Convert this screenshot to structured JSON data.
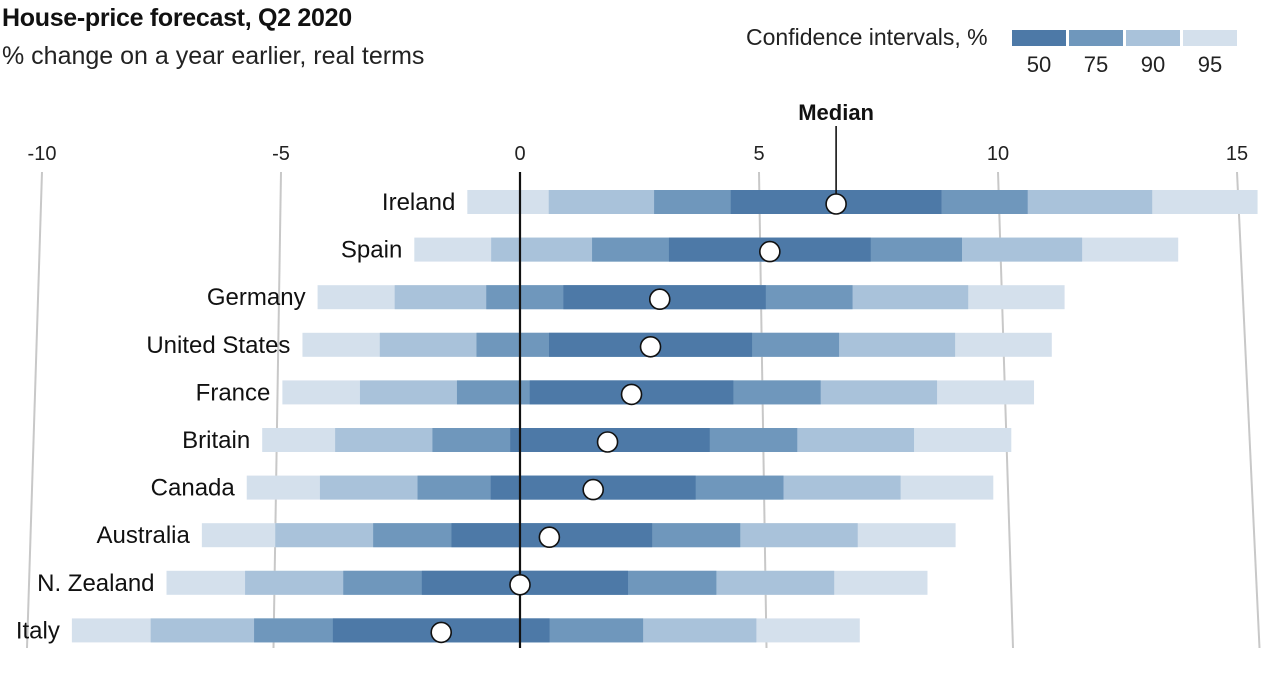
{
  "chart_data": {
    "type": "bar",
    "title": "House-price forecast, Q2 2020",
    "subtitle": "% change on a year earlier, real terms",
    "legend_title": "Confidence intervals, %",
    "legend_levels": [
      "50",
      "75",
      "90",
      "95"
    ],
    "median_label": "Median",
    "x_ticks": [
      "-10",
      "-5",
      "0",
      "5",
      "10",
      "15"
    ],
    "xlim": [
      -10,
      15
    ],
    "colors": {
      "50": "#4d79a7",
      "75": "#6f97bc",
      "90": "#a9c2da",
      "95": "#d4e0ec"
    },
    "countries": [
      {
        "name": "Ireland",
        "median": 6.6,
        "b95": [
          -1.1,
          15.4
        ],
        "b90": [
          0.6,
          13.2
        ],
        "b75": [
          2.8,
          10.6
        ],
        "b50": [
          4.4,
          8.8
        ]
      },
      {
        "name": "Spain",
        "median": 5.2,
        "b95": [
          -2.2,
          13.7
        ],
        "b90": [
          -0.6,
          11.7
        ],
        "b75": [
          1.5,
          9.2
        ],
        "b50": [
          3.1,
          7.3
        ]
      },
      {
        "name": "Germany",
        "median": 2.9,
        "b95": [
          -4.2,
          11.3
        ],
        "b90": [
          -2.6,
          9.3
        ],
        "b75": [
          -0.7,
          6.9
        ],
        "b50": [
          0.9,
          5.1
        ]
      },
      {
        "name": "United States",
        "median": 2.7,
        "b95": [
          -4.5,
          11.0
        ],
        "b90": [
          -2.9,
          9.0
        ],
        "b75": [
          -0.9,
          6.6
        ],
        "b50": [
          0.6,
          4.8
        ]
      },
      {
        "name": "France",
        "median": 2.3,
        "b95": [
          -4.9,
          10.6
        ],
        "b90": [
          -3.3,
          8.6
        ],
        "b75": [
          -1.3,
          6.2
        ],
        "b50": [
          0.2,
          4.4
        ]
      },
      {
        "name": "Britain",
        "median": 1.8,
        "b95": [
          -5.3,
          10.1
        ],
        "b90": [
          -3.8,
          8.1
        ],
        "b75": [
          -1.8,
          5.7
        ],
        "b50": [
          -0.2,
          3.9
        ]
      },
      {
        "name": "Canada",
        "median": 1.5,
        "b95": [
          -5.6,
          9.7
        ],
        "b90": [
          -4.1,
          7.8
        ],
        "b75": [
          -2.1,
          5.4
        ],
        "b50": [
          -0.6,
          3.6
        ]
      },
      {
        "name": "Australia",
        "median": 0.6,
        "b95": [
          -6.5,
          8.9
        ],
        "b90": [
          -5.0,
          6.9
        ],
        "b75": [
          -3.0,
          4.5
        ],
        "b50": [
          -1.4,
          2.7
        ]
      },
      {
        "name": "N. Zealand",
        "median": 0.0,
        "b95": [
          -7.2,
          8.3
        ],
        "b90": [
          -5.6,
          6.4
        ],
        "b75": [
          -3.6,
          4.0
        ],
        "b50": [
          -2.0,
          2.2
        ]
      },
      {
        "name": "Italy",
        "median": -1.6,
        "b95": [
          -9.1,
          6.9
        ],
        "b90": [
          -7.5,
          4.8
        ],
        "b75": [
          -5.4,
          2.5
        ],
        "b50": [
          -3.8,
          0.6
        ]
      }
    ]
  }
}
